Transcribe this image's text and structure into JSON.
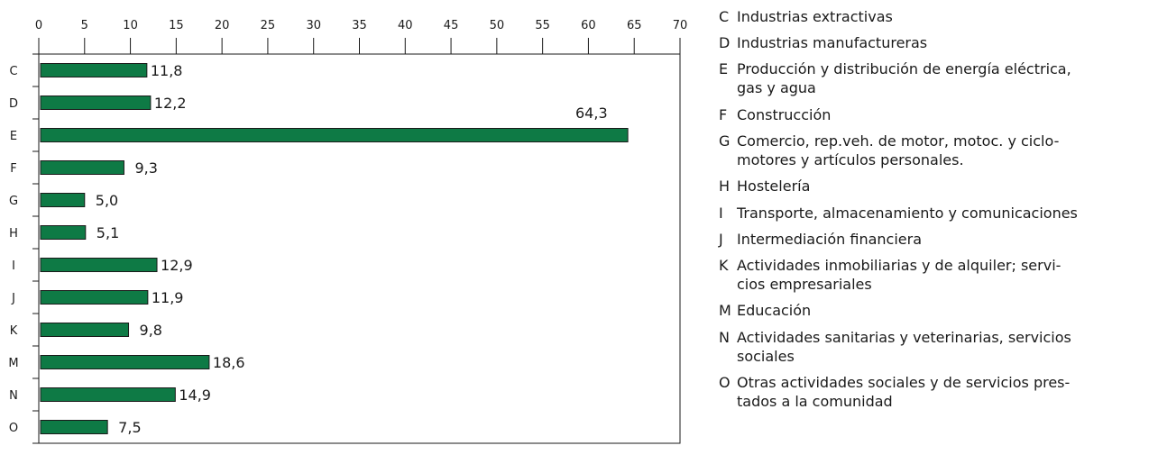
{
  "chart_data": {
    "type": "bar",
    "orientation": "horizontal",
    "title": "",
    "xlabel": "",
    "ylabel": "",
    "xlim": [
      0,
      70
    ],
    "x_ticks": [
      "0",
      "5",
      "10",
      "15",
      "20",
      "25",
      "30",
      "35",
      "40",
      "45",
      "50",
      "55",
      "60",
      "65",
      "70"
    ],
    "x_tick_values": [
      0,
      5,
      10,
      15,
      20,
      25,
      30,
      35,
      40,
      45,
      50,
      55,
      60,
      65,
      70
    ],
    "x_axis_position": "top",
    "grid": false,
    "bar_color": "#0e7a45",
    "categories": [
      "C",
      "D",
      "E",
      "F",
      "G",
      "H",
      "I",
      "J",
      "K",
      "M",
      "N",
      "O"
    ],
    "values": [
      11.8,
      12.2,
      64.3,
      9.3,
      5.0,
      5.1,
      12.9,
      11.9,
      9.8,
      18.6,
      14.9,
      7.5
    ],
    "value_labels": [
      "11,8",
      "12,2",
      "64,3",
      "9,3",
      "5,0",
      "5,1",
      "12,9",
      "11,9",
      "9,8",
      "18,6",
      "14,9",
      "7,5"
    ],
    "legend_placement": "right"
  },
  "legend": [
    {
      "code": "C",
      "lines": [
        "Industrias extractivas"
      ]
    },
    {
      "code": "D",
      "lines": [
        "Industrias manufactureras"
      ]
    },
    {
      "code": "E",
      "lines": [
        "Producción y distribución de energía eléctrica,",
        "gas y agua"
      ]
    },
    {
      "code": "F",
      "lines": [
        "Construcción"
      ]
    },
    {
      "code": "G",
      "lines": [
        "Comercio, rep.veh. de motor, motoc. y ciclo-",
        "motores y artículos personales."
      ]
    },
    {
      "code": "H",
      "lines": [
        "Hostelería"
      ]
    },
    {
      "code": "I",
      "lines": [
        "Transporte, almacenamiento y comunicaciones"
      ]
    },
    {
      "code": "J",
      "lines": [
        "Intermediación financiera"
      ]
    },
    {
      "code": "K",
      "lines": [
        "Actividades inmobiliarias y de alquiler; servi-",
        "cios empresariales"
      ]
    },
    {
      "code": "M",
      "lines": [
        "Educación"
      ]
    },
    {
      "code": "N",
      "lines": [
        "Actividades sanitarias y veterinarias, servicios",
        "sociales"
      ]
    },
    {
      "code": "O",
      "lines": [
        "Otras actividades sociales y de servicios pres-",
        "tados a la comunidad"
      ]
    }
  ]
}
